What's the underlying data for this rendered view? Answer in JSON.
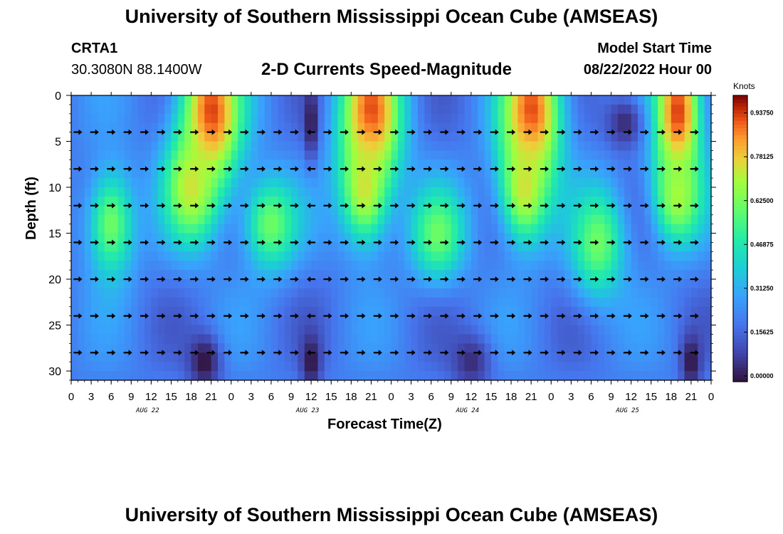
{
  "page": {
    "title": "University of Southern Mississippi Ocean Cube (AMSEAS)",
    "title_repeat": "University of Southern Mississippi Ocean Cube (AMSEAS)"
  },
  "station": {
    "id": "CRTA1",
    "coords": "30.3080N  88.1400W"
  },
  "model": {
    "label": "Model Start Time",
    "start": "08/22/2022 Hour 00"
  },
  "chart_data": {
    "type": "heatmap",
    "title": "2-D Currents Speed-Magnitude",
    "xlabel": "Forecast Time(Z)",
    "ylabel": "Depth (ft)",
    "xlim": [
      0,
      96
    ],
    "ylim": [
      31,
      0
    ],
    "x_tick_hours": [
      0,
      3,
      6,
      9,
      12,
      15,
      18,
      21,
      24,
      27,
      30,
      33,
      36,
      39,
      42,
      45,
      48,
      51,
      54,
      57,
      60,
      63,
      66,
      69,
      72,
      75,
      78,
      81,
      84,
      87,
      90,
      93,
      96
    ],
    "x_tick_labels": [
      "0",
      "3",
      "6",
      "9",
      "12",
      "15",
      "18",
      "21",
      "0",
      "3",
      "6",
      "9",
      "12",
      "15",
      "18",
      "21",
      "0",
      "3",
      "6",
      "9",
      "12",
      "15",
      "18",
      "21",
      "0",
      "3",
      "6",
      "9",
      "12",
      "15",
      "18",
      "21",
      "0"
    ],
    "date_labels": [
      {
        "hour": 12,
        "text": "AUG 22"
      },
      {
        "hour": 36,
        "text": "AUG 23"
      },
      {
        "hour": 60,
        "text": "AUG 24"
      },
      {
        "hour": 84,
        "text": "AUG 25"
      }
    ],
    "y_ticks": [
      0,
      5,
      10,
      15,
      20,
      25,
      30
    ],
    "y_tick_labels": [
      "0",
      "5",
      "10",
      "15",
      "20",
      "25",
      "30"
    ],
    "arrow_depths": [
      4,
      8,
      12,
      16,
      20,
      24,
      28
    ],
    "arrow_step_hours": 2.5,
    "colorbar": {
      "unit": "Knots",
      "min": 0,
      "max": 1.0,
      "tick_values": [
        0.0,
        0.15625,
        0.3125,
        0.46875,
        0.625,
        0.78125,
        0.9375
      ],
      "tick_labels": [
        "0.00000",
        "0.15625",
        "0.31250",
        "0.46875",
        "0.62500",
        "0.78125",
        "0.93750"
      ]
    },
    "speed_centers": [
      {
        "hour": 21,
        "depth": 2,
        "speed": 0.95,
        "radius_h": 4.5,
        "radius_d": 8
      },
      {
        "hour": 18,
        "depth": 10,
        "speed": 0.75,
        "radius_h": 4,
        "radius_d": 6
      },
      {
        "hour": 6,
        "depth": 14,
        "speed": 0.62,
        "radius_h": 3.5,
        "radius_d": 6
      },
      {
        "hour": 30,
        "depth": 14,
        "speed": 0.62,
        "radius_h": 4,
        "radius_d": 5
      },
      {
        "hour": 45,
        "depth": 2,
        "speed": 0.95,
        "radius_h": 4.5,
        "radius_d": 8
      },
      {
        "hour": 44,
        "depth": 10,
        "speed": 0.75,
        "radius_h": 3.5,
        "radius_d": 6
      },
      {
        "hour": 55,
        "depth": 15,
        "speed": 0.62,
        "radius_h": 4,
        "radius_d": 5
      },
      {
        "hour": 69,
        "depth": 2,
        "speed": 0.95,
        "radius_h": 4.5,
        "radius_d": 8
      },
      {
        "hour": 68,
        "depth": 10,
        "speed": 0.75,
        "radius_h": 3.5,
        "radius_d": 6
      },
      {
        "hour": 79,
        "depth": 16,
        "speed": 0.62,
        "radius_h": 4,
        "radius_d": 6
      },
      {
        "hour": 91,
        "depth": 2,
        "speed": 0.95,
        "radius_h": 3.5,
        "radius_d": 8
      },
      {
        "hour": 91,
        "depth": 11,
        "speed": 0.7,
        "radius_h": 3.5,
        "radius_d": 5
      }
    ],
    "slow_centers": [
      {
        "hour": 20,
        "depth": 29,
        "speed": 0.0,
        "radius_h": 2.5,
        "radius_d": 3
      },
      {
        "hour": 36,
        "depth": 3,
        "speed": 0.0,
        "radius_h": 1,
        "radius_d": 4
      },
      {
        "hour": 36,
        "depth": 29,
        "speed": 0.0,
        "radius_h": 1.5,
        "radius_d": 3
      },
      {
        "hour": 60,
        "depth": 29,
        "speed": 0.05,
        "radius_h": 3,
        "radius_d": 3
      },
      {
        "hour": 83,
        "depth": 3,
        "speed": 0.05,
        "radius_h": 3,
        "radius_d": 3
      },
      {
        "hour": 93,
        "depth": 29,
        "speed": 0.0,
        "radius_h": 1.5,
        "radius_d": 3
      }
    ]
  }
}
